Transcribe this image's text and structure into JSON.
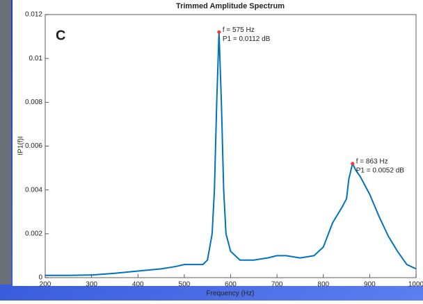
{
  "chart_data": {
    "type": "line",
    "title": "Trimmed Amplitude Spectrum",
    "panel_label": "C",
    "x_label": "Frequency (Hz)",
    "y_label": "IP1(f)I",
    "x": [
      200,
      250,
      300,
      350,
      400,
      450,
      480,
      500,
      520,
      540,
      550,
      560,
      565,
      570,
      575,
      580,
      585,
      590,
      600,
      620,
      650,
      680,
      700,
      720,
      750,
      780,
      800,
      820,
      840,
      850,
      855,
      863,
      870,
      880,
      900,
      920,
      940,
      960,
      980,
      1000
    ],
    "y": [
      0.0001,
      0.0001,
      0.00012,
      0.0002,
      0.0003,
      0.0004,
      0.0005,
      0.0006,
      0.0006,
      0.0006,
      0.0008,
      0.002,
      0.004,
      0.008,
      0.0112,
      0.008,
      0.004,
      0.002,
      0.0012,
      0.0008,
      0.0008,
      0.0009,
      0.001,
      0.001,
      0.0009,
      0.001,
      0.0014,
      0.0025,
      0.0032,
      0.0036,
      0.0045,
      0.0052,
      0.0049,
      0.0046,
      0.0038,
      0.0028,
      0.0019,
      0.0012,
      0.0006,
      0.0004
    ],
    "color": "#0072bd",
    "peaks": [
      {
        "x": 575,
        "y": 0.0112,
        "labels": [
          "f = 575 Hz",
          "P1 = 0.0112 dB"
        ]
      },
      {
        "x": 863,
        "y": 0.0052,
        "labels": [
          "f = 863 Hz",
          "P1 = 0.0052 dB"
        ]
      }
    ],
    "peak_color": "#ff3333",
    "xlim": [
      200,
      1000
    ],
    "xticks": [
      200,
      300,
      400,
      500,
      600,
      700,
      800,
      900,
      1000
    ],
    "ylim": [
      0,
      0.012
    ],
    "yticks": [
      0,
      0.002,
      0.004,
      0.006,
      0.008,
      0.01,
      0.012
    ]
  }
}
